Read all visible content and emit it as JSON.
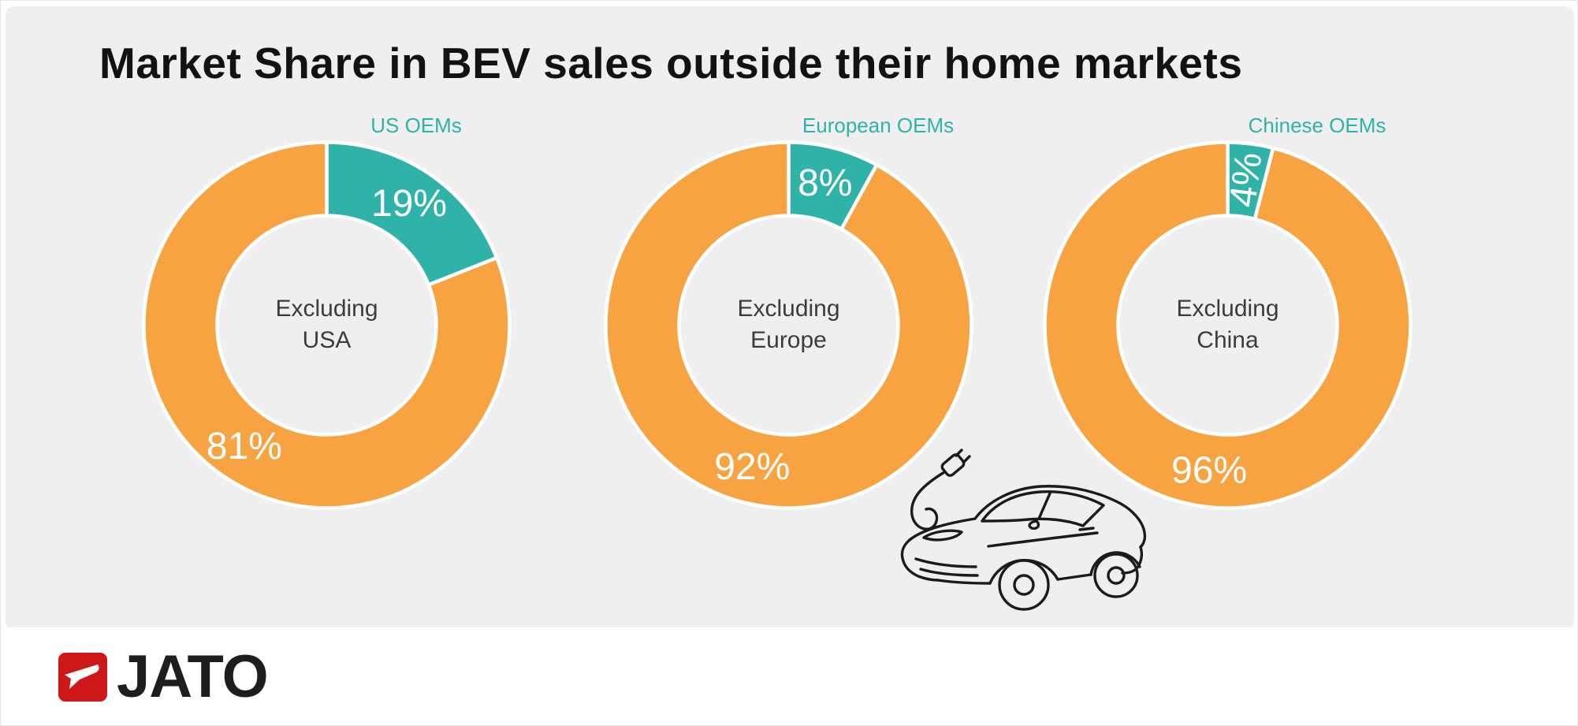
{
  "chart_data": {
    "type": "pie",
    "variant": "donut-small-multiples",
    "title": "Market Share in BEV sales outside their home markets",
    "unit": "%",
    "legend_position": "label-above-highlight-slice",
    "charts": [
      {
        "label": "US OEMs",
        "center": [
          "Excluding",
          "USA"
        ],
        "series": [
          {
            "value": 19,
            "display": "19%",
            "color": "#2FB3A8"
          },
          {
            "value": 81,
            "display": "81%",
            "color": "#F8A341"
          }
        ]
      },
      {
        "label": "European OEMs",
        "center": [
          "Excluding",
          "Europe"
        ],
        "series": [
          {
            "value": 8,
            "display": "8%",
            "color": "#2FB3A8"
          },
          {
            "value": 92,
            "display": "92%",
            "color": "#F8A341"
          }
        ]
      },
      {
        "label": "Chinese OEMs",
        "center": [
          "Excluding",
          "China"
        ],
        "series": [
          {
            "value": 4,
            "display": "4%",
            "color": "#2FB3A8"
          },
          {
            "value": 96,
            "display": "96%",
            "color": "#F8A341"
          }
        ]
      }
    ]
  },
  "illustration": {
    "name": "electric-car-with-plug",
    "style": "black-line-art"
  },
  "footer": {
    "brand": "JATO",
    "logo_icon": "jato-arrow-icon"
  },
  "colors": {
    "panel_background": "#EFEFEF",
    "page_background": "#FFFFFF",
    "highlight_teal": "#2FB3A8",
    "share_orange": "#F8A341",
    "title_text": "#121212",
    "center_text": "#3C3C3C",
    "percent_text": "#FFFFFF",
    "jato_red": "#CD1719",
    "wordmark_text": "#1E1E1E",
    "car_line": "#1B1B1B"
  }
}
